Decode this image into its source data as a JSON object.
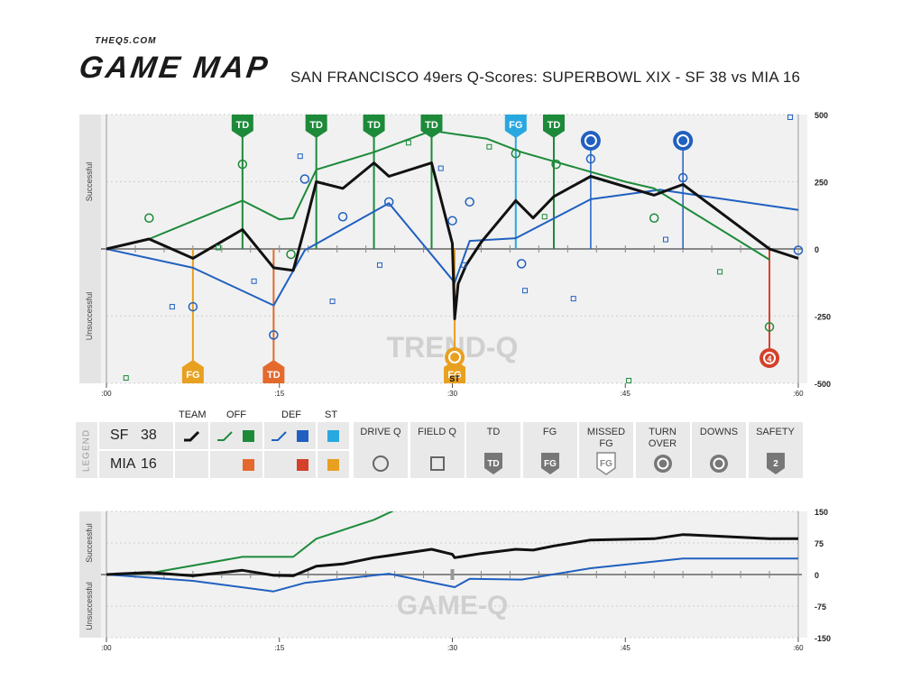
{
  "header": {
    "site": "THEQ5.COM",
    "brand": "GAME MAP",
    "title": "SAN FRANCISCO 49ers Q-Scores: SUPERBOWL XIX - SF 38 vs MIA 16"
  },
  "colors": {
    "team": "#111111",
    "sf_off": "#1d8a3a",
    "sf_def": "#2060c0",
    "sf_st": "#29a8e0",
    "mia_off": "#e36a2c",
    "mia_def": "#d4402a",
    "mia_st": "#e8a020",
    "grid_bg": "#f0f0f0"
  },
  "chart_data": [
    {
      "type": "line",
      "name": "trend-q",
      "watermark": "TREND-Q",
      "ylabel_top": "Successful",
      "ylabel_bottom": "Unsuccessful",
      "x_ticks": [
        ":00",
        ":15",
        ":30",
        ":45",
        ":60"
      ],
      "y_ticks": [
        500,
        250,
        0,
        -250,
        -500
      ],
      "xlim": [
        0,
        60
      ],
      "ylim": [
        -500,
        500
      ],
      "series": [
        {
          "key": "team",
          "points": [
            [
              0,
              0
            ],
            [
              3.7,
              37
            ],
            [
              7.5,
              -35
            ],
            [
              11.8,
              72
            ],
            [
              14.5,
              -70
            ],
            [
              16.2,
              -80
            ],
            [
              17.2,
              80
            ],
            [
              18.2,
              250
            ],
            [
              20.5,
              225
            ],
            [
              23.2,
              320
            ],
            [
              24.5,
              270
            ],
            [
              28.2,
              320
            ],
            [
              30,
              20
            ],
            [
              30.2,
              -260
            ],
            [
              30.5,
              -130
            ],
            [
              31.2,
              -60
            ],
            [
              32.5,
              25
            ],
            [
              35.5,
              180
            ],
            [
              37,
              115
            ],
            [
              38.8,
              195
            ],
            [
              42,
              270
            ],
            [
              47.5,
              200
            ],
            [
              50,
              240
            ],
            [
              57.5,
              0
            ],
            [
              60,
              -35
            ]
          ]
        },
        {
          "key": "sf_off",
          "points": [
            [
              3.7,
              37
            ],
            [
              11.8,
              180
            ],
            [
              15,
              110
            ],
            [
              16.2,
              115
            ],
            [
              18.2,
              295
            ],
            [
              23.2,
              360
            ],
            [
              28.2,
              440
            ],
            [
              29,
              435
            ],
            [
              33,
              410
            ],
            [
              36,
              360
            ],
            [
              45,
              250
            ],
            [
              47.5,
              225
            ],
            [
              57.5,
              -40
            ]
          ]
        },
        {
          "key": "sf_def",
          "points": [
            [
              0,
              0
            ],
            [
              7.5,
              -70
            ],
            [
              14.5,
              -210
            ],
            [
              17.2,
              -5
            ],
            [
              24.5,
              170
            ],
            [
              30.2,
              -125
            ],
            [
              31.5,
              30
            ],
            [
              35.5,
              40
            ],
            [
              42,
              185
            ],
            [
              48,
              220
            ],
            [
              60,
              145
            ]
          ]
        }
      ],
      "markers": [
        {
          "label": "TD",
          "team": "sf",
          "x": 11.8,
          "y": 72,
          "kind": "off"
        },
        {
          "label": "TD",
          "team": "sf",
          "x": 18.2,
          "y": 250,
          "kind": "off"
        },
        {
          "label": "TD",
          "team": "sf",
          "x": 23.2,
          "y": 320,
          "kind": "off"
        },
        {
          "label": "TD",
          "team": "sf",
          "x": 28.2,
          "y": 320,
          "kind": "off"
        },
        {
          "label": "FG",
          "team": "sf",
          "x": 35.5,
          "y": 180,
          "kind": "st"
        },
        {
          "label": "TD",
          "team": "sf",
          "x": 38.8,
          "y": 195,
          "kind": "off"
        },
        {
          "label": "FG",
          "team": "mia",
          "x": 7.5,
          "y": -35,
          "kind": "st"
        },
        {
          "label": "TD",
          "team": "mia",
          "x": 14.5,
          "y": -70,
          "kind": "off"
        },
        {
          "label": "FG",
          "team": "mia",
          "x": 30.2,
          "y": -130,
          "kind": "st"
        }
      ],
      "turnovers": [
        {
          "team": "sf",
          "x": 42,
          "y": 270
        },
        {
          "team": "sf",
          "x": 50,
          "y": 240
        },
        {
          "team": "mia",
          "x": 30.2,
          "y": -130
        }
      ],
      "downs": [
        {
          "team": "mia",
          "x": 57.5,
          "y": -35
        }
      ],
      "st_label": "ST",
      "drive_q": [
        {
          "x": 3.7,
          "y": 115,
          "kind": "off"
        },
        {
          "x": 11.8,
          "y": 315,
          "kind": "off"
        },
        {
          "x": 16,
          "y": -20,
          "kind": "off"
        },
        {
          "x": 39,
          "y": 315,
          "kind": "off"
        },
        {
          "x": 35.5,
          "y": 355,
          "kind": "off"
        },
        {
          "x": 47.5,
          "y": 115,
          "kind": "off"
        },
        {
          "x": 57.5,
          "y": -290,
          "kind": "off"
        },
        {
          "x": 7.5,
          "y": -215,
          "kind": "def"
        },
        {
          "x": 14.5,
          "y": -320,
          "kind": "def"
        },
        {
          "x": 17.2,
          "y": 260,
          "kind": "def"
        },
        {
          "x": 20.5,
          "y": 120,
          "kind": "def"
        },
        {
          "x": 24.5,
          "y": 175,
          "kind": "def"
        },
        {
          "x": 30,
          "y": 105,
          "kind": "def"
        },
        {
          "x": 31.5,
          "y": 175,
          "kind": "def"
        },
        {
          "x": 36,
          "y": -55,
          "kind": "def"
        },
        {
          "x": 42,
          "y": 335,
          "kind": "def"
        },
        {
          "x": 50,
          "y": 265,
          "kind": "def"
        },
        {
          "x": 60,
          "y": -5,
          "kind": "def"
        }
      ],
      "field_q": [
        {
          "x": 1.7,
          "y": -480,
          "kind": "off"
        },
        {
          "x": 9.7,
          "y": 5,
          "kind": "off"
        },
        {
          "x": 26.2,
          "y": 395,
          "kind": "off"
        },
        {
          "x": 33.2,
          "y": 380,
          "kind": "off"
        },
        {
          "x": 38,
          "y": 120,
          "kind": "off"
        },
        {
          "x": 45.3,
          "y": -490,
          "kind": "off"
        },
        {
          "x": 53.2,
          "y": -85,
          "kind": "off"
        },
        {
          "x": 5.7,
          "y": -215,
          "kind": "def"
        },
        {
          "x": 12.8,
          "y": -120,
          "kind": "def"
        },
        {
          "x": 16.8,
          "y": 345,
          "kind": "def"
        },
        {
          "x": 19.6,
          "y": -195,
          "kind": "def"
        },
        {
          "x": 23.7,
          "y": -60,
          "kind": "def"
        },
        {
          "x": 29,
          "y": 300,
          "kind": "def"
        },
        {
          "x": 31,
          "y": -60,
          "kind": "def"
        },
        {
          "x": 36.3,
          "y": -155,
          "kind": "def"
        },
        {
          "x": 40.5,
          "y": -185,
          "kind": "def"
        },
        {
          "x": 48.5,
          "y": 35,
          "kind": "def"
        },
        {
          "x": 59.3,
          "y": 490,
          "kind": "def"
        }
      ]
    },
    {
      "type": "line",
      "name": "game-q",
      "watermark": "GAME-Q",
      "ylabel_top": "Successful",
      "ylabel_bottom": "Unsuccessful",
      "x_ticks": [
        ":00",
        ":15",
        ":30",
        ":45",
        ":60"
      ],
      "y_ticks": [
        150,
        75,
        0,
        -75,
        -150
      ],
      "xlim": [
        0,
        60
      ],
      "ylim": [
        -150,
        150
      ],
      "series": [
        {
          "key": "team",
          "points": [
            [
              0,
              0
            ],
            [
              3.7,
              5
            ],
            [
              7.5,
              -3
            ],
            [
              11.8,
              10
            ],
            [
              14.5,
              -2
            ],
            [
              16.2,
              -3
            ],
            [
              18.2,
              20
            ],
            [
              20.5,
              25
            ],
            [
              23.2,
              40
            ],
            [
              24.5,
              45
            ],
            [
              28.2,
              60
            ],
            [
              30,
              48
            ],
            [
              30.2,
              40
            ],
            [
              32.5,
              50
            ],
            [
              35.5,
              60
            ],
            [
              37,
              58
            ],
            [
              38.8,
              68
            ],
            [
              42,
              82
            ],
            [
              47.5,
              85
            ],
            [
              50,
              95
            ],
            [
              57.5,
              85
            ],
            [
              60,
              85
            ]
          ]
        },
        {
          "key": "sf_off",
          "points": [
            [
              0,
              0
            ],
            [
              3.7,
              3
            ],
            [
              11.8,
              42
            ],
            [
              16.2,
              42
            ],
            [
              18.2,
              85
            ],
            [
              23.2,
              130
            ],
            [
              25,
              153
            ]
          ]
        },
        {
          "key": "sf_def",
          "points": [
            [
              0,
              0
            ],
            [
              7.5,
              -15
            ],
            [
              14.5,
              -40
            ],
            [
              17.2,
              -20
            ],
            [
              24.5,
              2
            ],
            [
              30.2,
              -30
            ],
            [
              31.5,
              -10
            ],
            [
              36,
              -12
            ],
            [
              42,
              15
            ],
            [
              50,
              38
            ],
            [
              60,
              38
            ]
          ]
        }
      ]
    }
  ],
  "legend": {
    "section_label": "LEGEND",
    "col_headers": [
      "TEAM",
      "OFF",
      "DEF",
      "ST"
    ],
    "teams": [
      {
        "name": "SF",
        "score": "38"
      },
      {
        "name": "MIA",
        "score": "16"
      }
    ],
    "keys": [
      {
        "label": "DRIVE Q",
        "icon": "circle-outline-icon"
      },
      {
        "label": "FIELD Q",
        "icon": "square-outline-icon"
      },
      {
        "label": "TD",
        "icon": "td-shield-icon",
        "badge": "TD"
      },
      {
        "label": "FG",
        "icon": "fg-shield-icon",
        "badge": "FG"
      },
      {
        "label": "MISSED FG",
        "icon": "missed-fg-shield-icon",
        "badge": "FG"
      },
      {
        "label": "TURN OVER",
        "icon": "turnover-icon"
      },
      {
        "label": "DOWNS",
        "icon": "downs-icon"
      },
      {
        "label": "SAFETY",
        "icon": "safety-shield-icon",
        "badge": "2"
      }
    ]
  }
}
